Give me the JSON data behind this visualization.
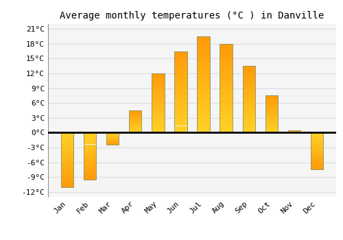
{
  "months": [
    "Jan",
    "Feb",
    "Mar",
    "Apr",
    "May",
    "Jun",
    "Jul",
    "Aug",
    "Sep",
    "Oct",
    "Nov",
    "Dec"
  ],
  "values": [
    -11,
    -9.5,
    -2.5,
    4.5,
    12,
    16.5,
    19.5,
    18,
    13.5,
    7.5,
    0.5,
    -7.5
  ],
  "title": "Average monthly temperatures (°C ) in Danville",
  "ylim": [
    -13,
    22
  ],
  "yticks": [
    -12,
    -9,
    -6,
    -3,
    0,
    3,
    6,
    9,
    12,
    15,
    18,
    21
  ],
  "ytick_labels": [
    "-12°C",
    "-9°C",
    "-6°C",
    "-3°C",
    "0°C",
    "3°C",
    "6°C",
    "9°C",
    "12°C",
    "15°C",
    "18°C",
    "21°C"
  ],
  "bar_color_light": "#FFD966",
  "bar_color_dark": "#FFA500",
  "bar_edge_color": "#999966",
  "plot_bg_color": "#f5f5f5",
  "fig_bg_color": "#ffffff",
  "grid_color": "#dddddd",
  "zero_line_color": "#000000",
  "title_fontsize": 10,
  "tick_fontsize": 8,
  "bar_width": 0.55
}
